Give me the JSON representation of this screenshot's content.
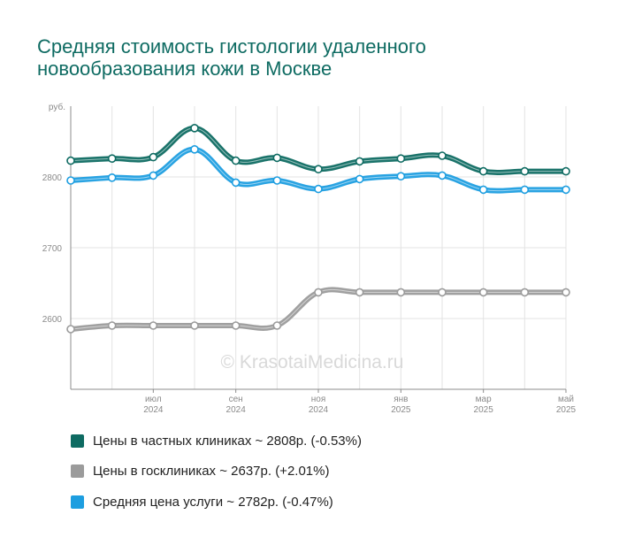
{
  "chart_data": {
    "type": "line",
    "title": "Средняя стоимость гистологии удаленного новообразования кожи в Москве",
    "y_unit": "руб.",
    "ylim": [
      2500,
      2900
    ],
    "y_ticks": [
      2600,
      2700,
      2800
    ],
    "x": [
      "2024-05",
      "2024-06",
      "2024-07",
      "2024-08",
      "2024-09",
      "2024-10",
      "2024-11",
      "2024-12",
      "2025-01",
      "2025-02",
      "2025-03",
      "2025-04",
      "2025-05"
    ],
    "x_ticks": [
      {
        "month": "июл",
        "year": "2024"
      },
      {
        "month": "сен",
        "year": "2024"
      },
      {
        "month": "ноя",
        "year": "2024"
      },
      {
        "month": "янв",
        "year": "2025"
      },
      {
        "month": "мар",
        "year": "2025"
      },
      {
        "month": "май",
        "year": "2025"
      }
    ],
    "grid": true,
    "legend_position": "bottom",
    "watermark": "© KrasotaiMedicina.ru",
    "series": [
      {
        "name": "Цены в частных клиниках ~ 2808р. (-0.53%)",
        "color": "#0e6b62",
        "values": [
          2823,
          2826,
          2828,
          2869,
          2823,
          2827,
          2811,
          2822,
          2826,
          2830,
          2808,
          2808,
          2808
        ]
      },
      {
        "name": "Цены в госклиниках ~ 2637р. (+2.01%)",
        "color": "#9b9b9b",
        "values": [
          2585,
          2590,
          2590,
          2590,
          2590,
          2590,
          2637,
          2637,
          2637,
          2637,
          2637,
          2637,
          2637
        ]
      },
      {
        "name": "Средняя цена услуги ~ 2782р. (-0.47%)",
        "color": "#1d9ee0",
        "values": [
          2795,
          2799,
          2802,
          2839,
          2792,
          2795,
          2783,
          2797,
          2801,
          2802,
          2782,
          2782,
          2782
        ]
      }
    ]
  }
}
